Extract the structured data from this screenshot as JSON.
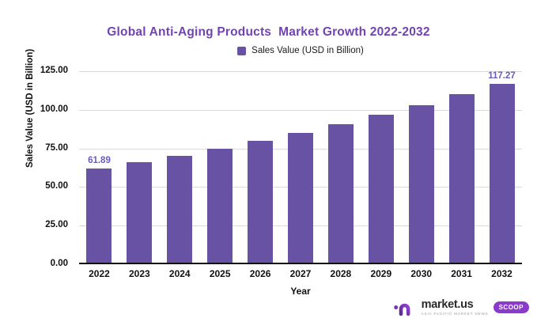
{
  "page": {
    "background": "#FFFFFF"
  },
  "chart_data": {
    "type": "bar",
    "title": "Global Anti-Aging Products  Market Growth 2022-2032",
    "legend": {
      "label": "Sales Value (USD in Billion)"
    },
    "xlabel": "Year",
    "ylabel": "Sales Value (USD in Billion)",
    "categories": [
      "2022",
      "2023",
      "2024",
      "2025",
      "2026",
      "2027",
      "2028",
      "2029",
      "2030",
      "2031",
      "2032"
    ],
    "values": [
      61.89,
      65.97,
      70.32,
      74.96,
      79.9,
      85.17,
      90.78,
      96.77,
      103.15,
      109.95,
      117.27
    ],
    "value_labels": {
      "2022": "61.89",
      "2032": "117.27"
    },
    "ylim": [
      0,
      125
    ],
    "yticks": [
      "0.00",
      "25.00",
      "50.00",
      "75.00",
      "100.00",
      "125.00"
    ],
    "grid": true,
    "legend_position": "top-center",
    "colors": {
      "bar": "#6852A4",
      "title": "#7143B4",
      "value_label": "#685CBD",
      "grid": "#D9D9D9",
      "axis_text": "#111111",
      "baseline": "#111111"
    }
  },
  "branding": {
    "name": "market.us",
    "badge": "SCOOP",
    "tagline": "ASIA PACIFIC MARKET NEWS",
    "icon": "market-us-logo-icon",
    "colors": {
      "purple_dark": "#5B2D8F",
      "purple_bright": "#9340D6",
      "badge_bg": "#8A3BCB"
    }
  }
}
